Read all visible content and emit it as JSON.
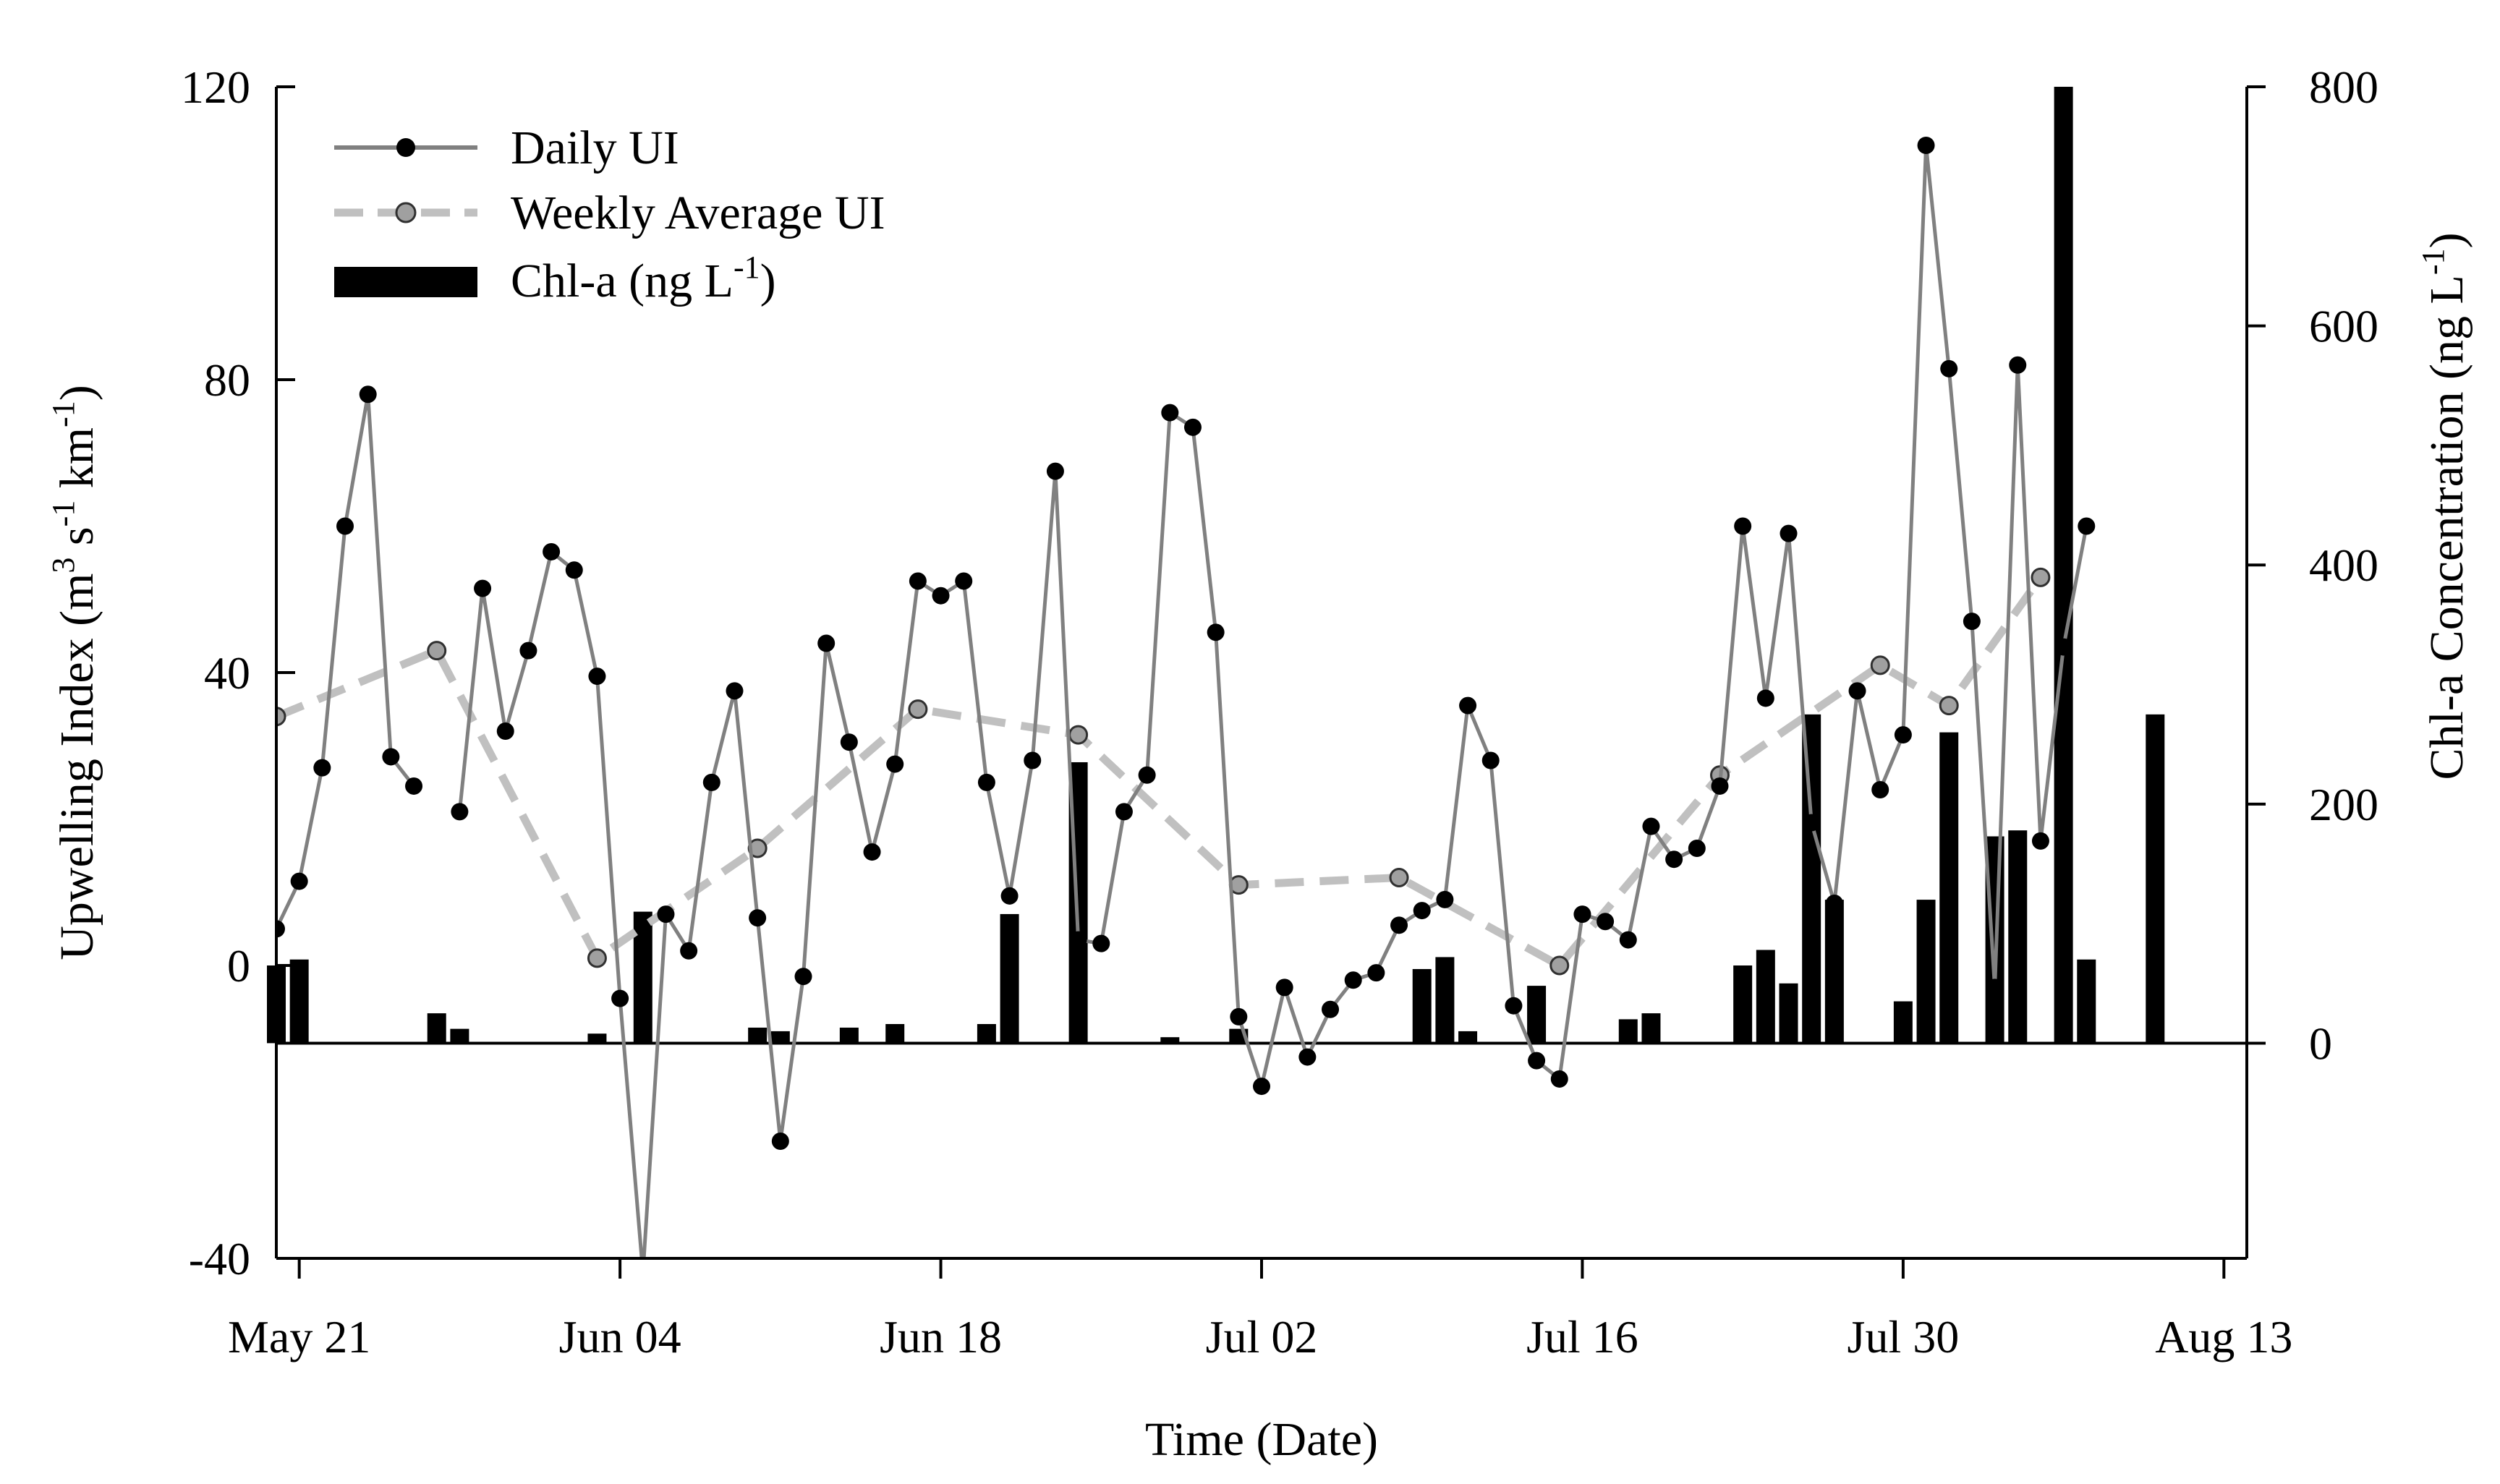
{
  "chart_data": {
    "type": "bar+line",
    "x_unit": "days since May 20",
    "x_range": [
      0,
      86
    ],
    "x_ticks": [
      {
        "x": 1,
        "label": "May 21"
      },
      {
        "x": 15,
        "label": "Jun 04"
      },
      {
        "x": 29,
        "label": "Jun 18"
      },
      {
        "x": 43,
        "label": "Jul 02"
      },
      {
        "x": 57,
        "label": "Jul 16"
      },
      {
        "x": 71,
        "label": "Jul 30"
      },
      {
        "x": 85,
        "label": "Aug 13"
      }
    ],
    "left_axis": {
      "label_parts": {
        "a": "Upwelling Index (m",
        "b": "3",
        "c": " s",
        "d": "-1",
        "e": " km",
        "f": "-1",
        "g": ")"
      },
      "range": [
        -40,
        120
      ],
      "ticks": [
        -40,
        0,
        40,
        80,
        120
      ]
    },
    "right_axis": {
      "label_parts": {
        "a": "Chl-a Concentration (ng L",
        "b": "-1",
        "c": ")"
      },
      "range": [
        -180,
        800
      ],
      "ticks": [
        0,
        200,
        400,
        600,
        800
      ]
    },
    "xlabel": "Time (Date)",
    "series": [
      {
        "name": "Daily UI",
        "kind": "line",
        "axis": "left",
        "color": "#808080",
        "marker_color": "#000000",
        "points": [
          [
            0,
            5
          ],
          [
            1,
            11.5
          ],
          [
            2,
            27
          ],
          [
            3,
            60
          ],
          [
            4,
            78
          ],
          [
            5,
            28.5
          ],
          [
            6,
            24.5
          ],
          [
            7,
            null
          ],
          [
            8,
            21
          ],
          [
            9,
            51.5
          ],
          [
            10,
            32
          ],
          [
            11,
            43
          ],
          [
            12,
            56.5
          ],
          [
            13,
            54
          ],
          [
            14,
            39.5
          ],
          [
            15,
            -4.5
          ],
          [
            16,
            -42
          ],
          [
            17,
            7
          ],
          [
            18,
            2
          ],
          [
            19,
            25
          ],
          [
            20,
            37.5
          ],
          [
            21,
            6.5
          ],
          [
            22,
            -24
          ],
          [
            23,
            -1.5
          ],
          [
            24,
            44
          ],
          [
            25,
            30.5
          ],
          [
            26,
            15.5
          ],
          [
            27,
            27.5
          ],
          [
            28,
            52.5
          ],
          [
            29,
            50.5
          ],
          [
            30,
            52.5
          ],
          [
            31,
            25
          ],
          [
            32,
            9.5
          ],
          [
            33,
            28
          ],
          [
            34,
            67.5
          ],
          [
            35,
            3.5
          ],
          [
            36,
            3
          ],
          [
            37,
            21
          ],
          [
            38,
            26
          ],
          [
            39,
            75.5
          ],
          [
            40,
            73.5
          ],
          [
            41,
            45.5
          ],
          [
            42,
            -7
          ],
          [
            43,
            -16.5
          ],
          [
            44,
            -3
          ],
          [
            45,
            -12.5
          ],
          [
            46,
            -6
          ],
          [
            47,
            -2
          ],
          [
            48,
            -1
          ],
          [
            49,
            5.5
          ],
          [
            50,
            7.5
          ],
          [
            51,
            9
          ],
          [
            52,
            35.5
          ],
          [
            53,
            28
          ],
          [
            54,
            -5.5
          ],
          [
            55,
            -13
          ],
          [
            56,
            -15.5
          ],
          [
            57,
            7
          ],
          [
            58,
            6
          ],
          [
            59,
            3.5
          ],
          [
            60,
            19
          ],
          [
            61,
            14.5
          ],
          [
            62,
            16
          ],
          [
            63,
            24.5
          ],
          [
            64,
            60
          ],
          [
            65,
            36.5
          ],
          [
            66,
            59
          ],
          [
            67,
            19.5
          ],
          [
            68,
            8.5
          ],
          [
            69,
            37.5
          ],
          [
            70,
            24
          ],
          [
            71,
            31.5
          ],
          [
            72,
            112
          ],
          [
            73,
            81.5
          ],
          [
            74,
            47
          ],
          [
            75,
            -3
          ],
          [
            76,
            82
          ],
          [
            77,
            17
          ],
          [
            78,
            43.5
          ],
          [
            79,
            60
          ]
        ]
      },
      {
        "name": "Weekly Average UI",
        "kind": "line",
        "axis": "left",
        "color": "#c0c0c0",
        "marker_color": "#a0a0a0",
        "points": [
          [
            0,
            34
          ],
          [
            7,
            43
          ],
          [
            14,
            1
          ],
          [
            21,
            16
          ],
          [
            28,
            35
          ],
          [
            35,
            31.5
          ],
          [
            42,
            11
          ],
          [
            49,
            12
          ],
          [
            56,
            0
          ],
          [
            63,
            26
          ],
          [
            70,
            41
          ],
          [
            73,
            35.5
          ],
          [
            77,
            53
          ]
        ]
      },
      {
        "name": "Chl-a (ng L⁻¹)",
        "kind": "bar",
        "axis": "right",
        "color": "#000000",
        "points": [
          [
            0,
            65
          ],
          [
            1,
            70
          ],
          [
            7,
            25
          ],
          [
            8,
            12
          ],
          [
            14,
            8
          ],
          [
            16,
            110
          ],
          [
            21,
            13
          ],
          [
            22,
            10
          ],
          [
            25,
            13
          ],
          [
            27,
            16
          ],
          [
            31,
            16
          ],
          [
            32,
            108
          ],
          [
            35,
            235
          ],
          [
            39,
            5
          ],
          [
            42,
            12
          ],
          [
            50,
            62
          ],
          [
            51,
            72
          ],
          [
            52,
            10
          ],
          [
            55,
            48
          ],
          [
            59,
            20
          ],
          [
            60,
            25
          ],
          [
            64,
            65
          ],
          [
            65,
            78
          ],
          [
            66,
            50
          ],
          [
            67,
            275
          ],
          [
            68,
            120
          ],
          [
            71,
            35
          ],
          [
            72,
            120
          ],
          [
            73,
            260
          ],
          [
            75,
            173
          ],
          [
            76,
            178
          ],
          [
            78,
            800
          ],
          [
            79,
            70
          ],
          [
            82,
            275
          ]
        ]
      }
    ],
    "legend": {
      "position": "top-left",
      "items": [
        {
          "label": "Daily UI",
          "label_sup": ""
        },
        {
          "label": "Weekly Average UI",
          "label_sup": ""
        },
        {
          "label": "Chl-a (ng L",
          "label_sup": "-1",
          "label_tail": ")"
        }
      ]
    }
  }
}
